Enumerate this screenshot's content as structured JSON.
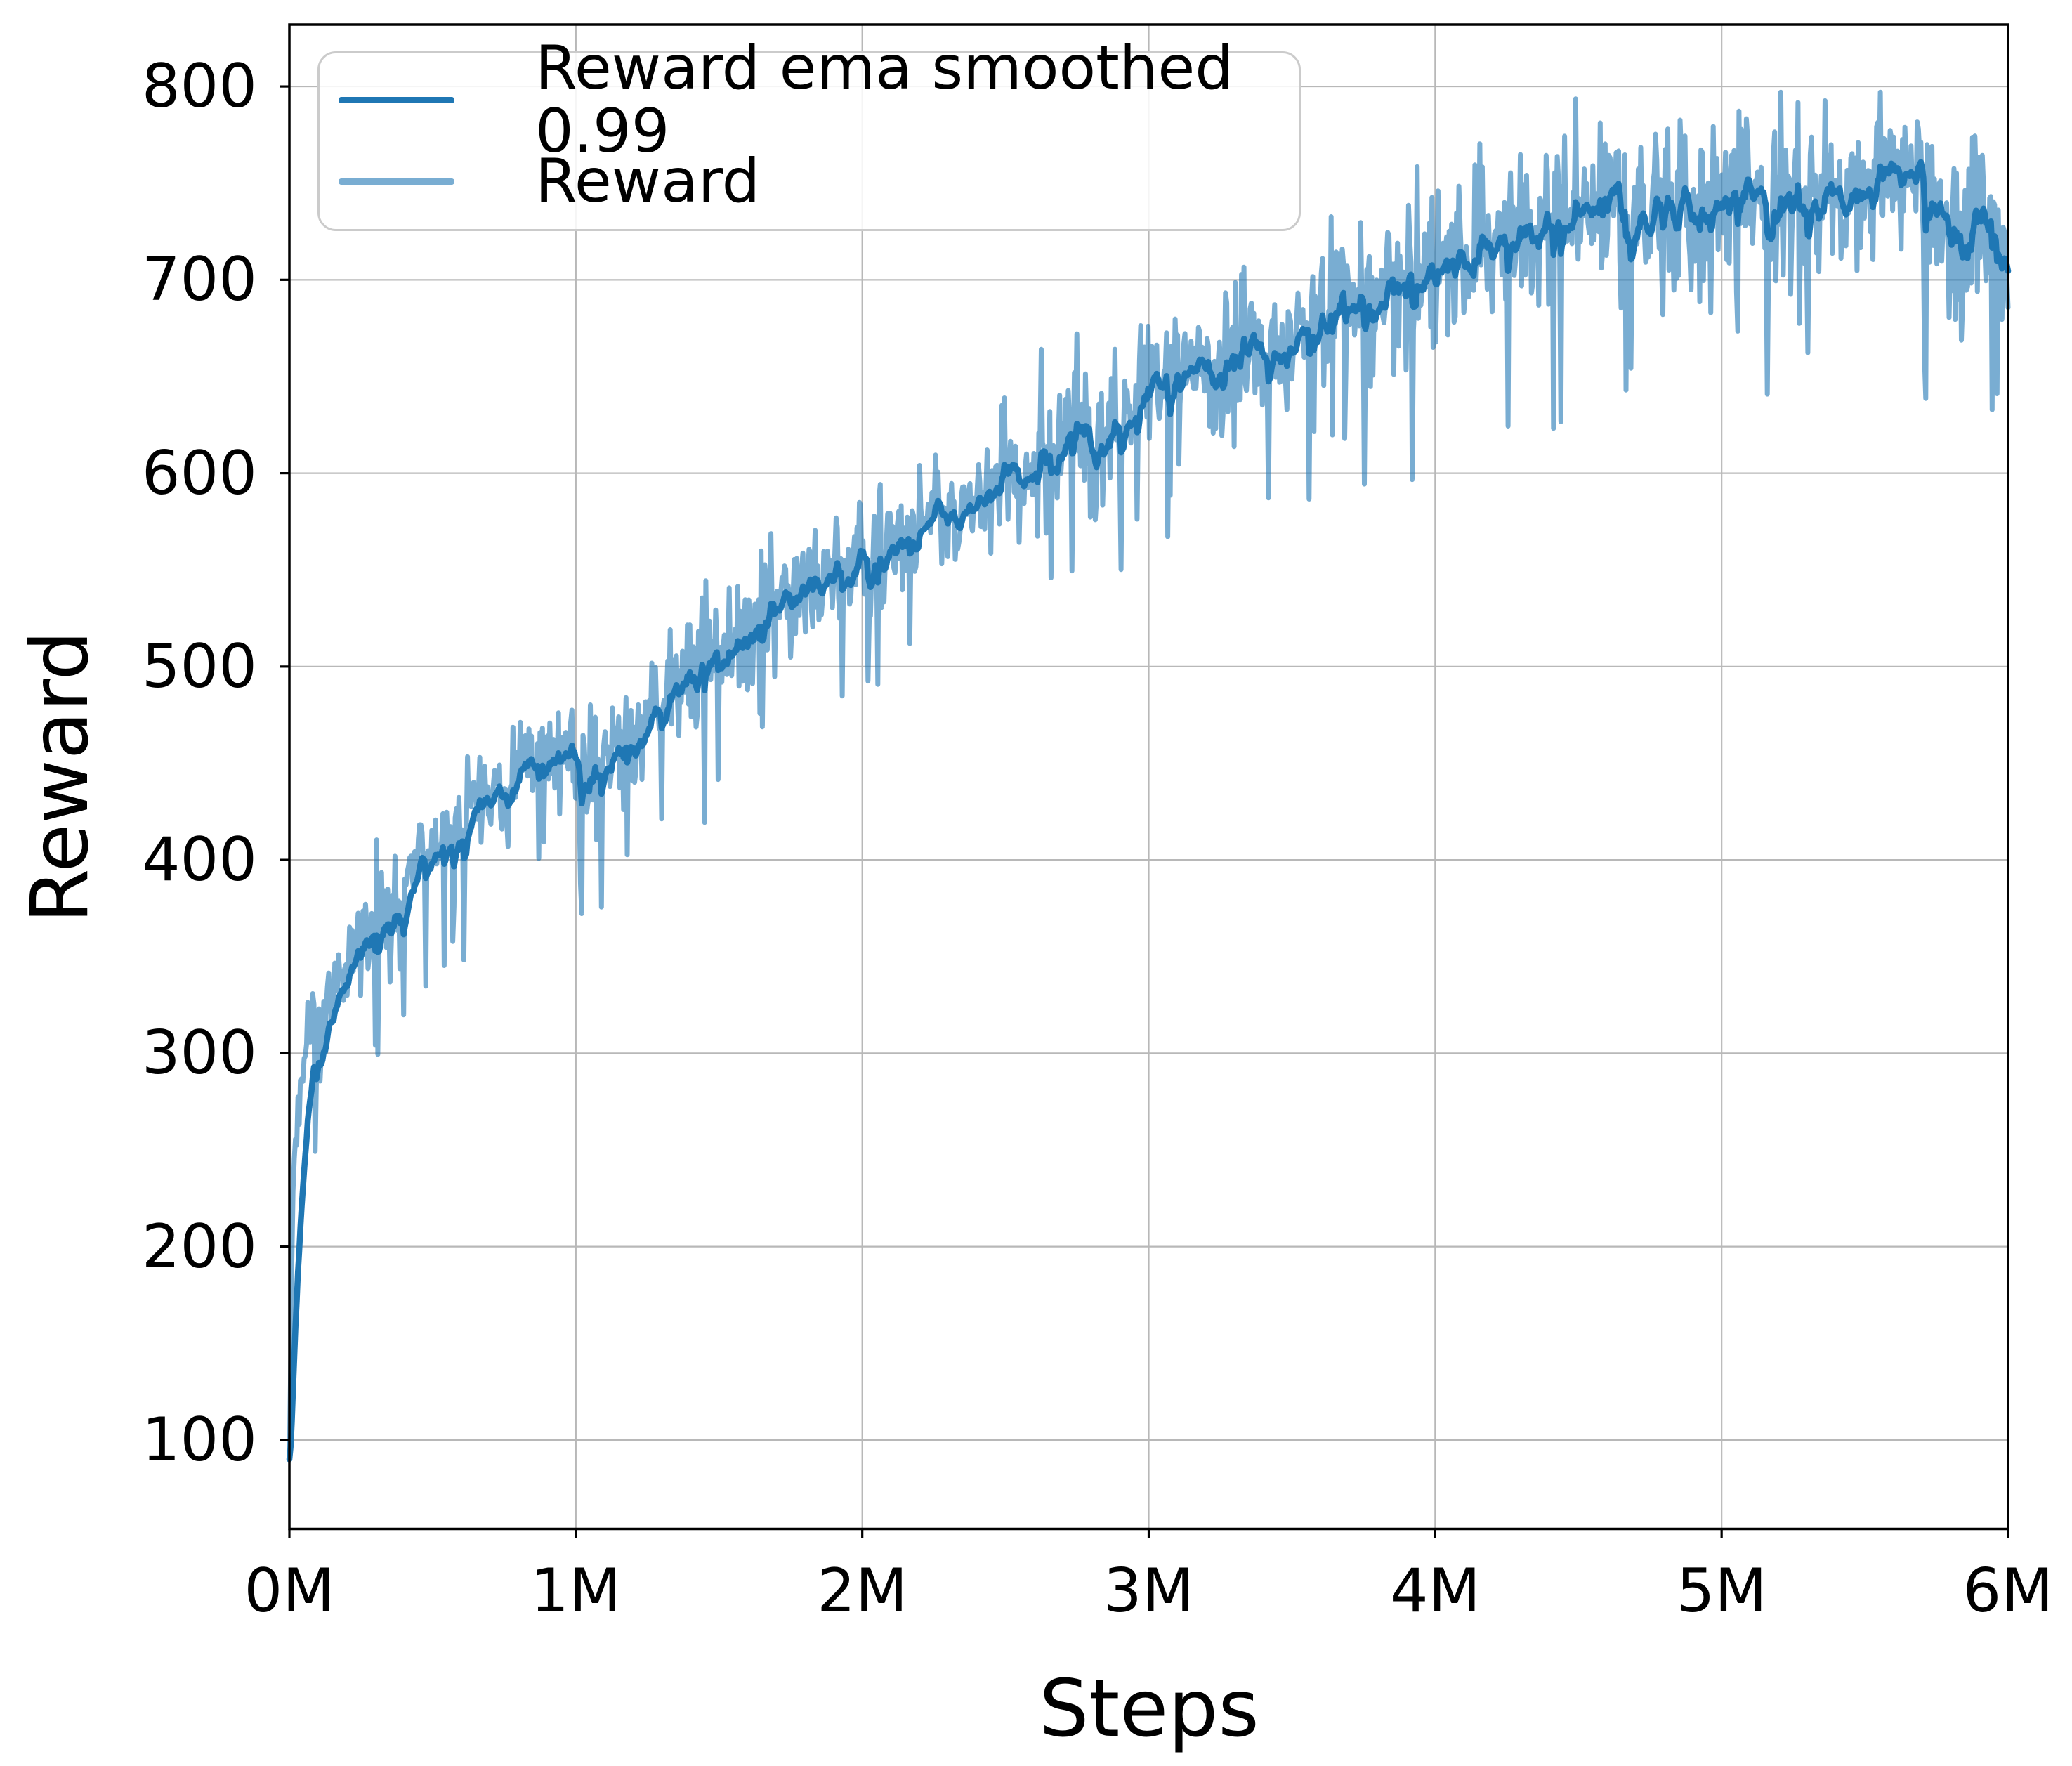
{
  "figure": {
    "background": "#ffffff"
  },
  "chart_data": {
    "type": "line",
    "title": "",
    "xlabel": "Steps",
    "ylabel": "Reward",
    "xlim_steps": [
      0,
      6000000
    ],
    "ylim": [
      54,
      832
    ],
    "grid": {
      "show": true,
      "color": "#b8b8b8"
    },
    "axis_color": "#000000",
    "xticks": {
      "values_millions": [
        0,
        1,
        2,
        3,
        4,
        5,
        6
      ],
      "labels": [
        "0M",
        "1M",
        "2M",
        "3M",
        "4M",
        "5M",
        "6M"
      ]
    },
    "yticks": {
      "values": [
        100,
        200,
        300,
        400,
        500,
        600,
        700,
        800
      ],
      "labels": [
        "100",
        "200",
        "300",
        "400",
        "500",
        "600",
        "700",
        "800"
      ]
    },
    "legend": {
      "position": "upper-left",
      "entries": [
        {
          "label": "Reward ema smoothed 0.99",
          "color": "#1f77b4"
        },
        {
          "label": "Reward",
          "color": "rgba(31,119,180,0.6)"
        }
      ]
    },
    "series": [
      {
        "name": "Reward ema smoothed 0.99",
        "color": "#1f77b4",
        "line_width": 8.5,
        "smoothing": "ema 0.99",
        "x_millions": [
          0,
          0.01,
          0.02,
          0.04,
          0.07,
          0.1,
          0.15,
          0.2,
          0.25,
          0.3,
          0.35,
          0.4,
          0.45,
          0.5,
          0.55,
          0.6,
          0.65,
          0.7,
          0.75,
          0.8,
          0.85,
          0.9,
          0.95,
          1.0,
          1.05,
          1.1,
          1.15,
          1.2,
          1.25,
          1.3,
          1.35,
          1.4,
          1.45,
          1.5,
          1.55,
          1.6,
          1.65,
          1.7,
          1.75,
          1.8,
          1.85,
          1.9,
          1.95,
          2.0,
          2.05,
          2.1,
          2.15,
          2.2,
          2.25,
          2.3,
          2.35,
          2.4,
          2.45,
          2.5,
          2.55,
          2.6,
          2.65,
          2.7,
          2.75,
          2.8,
          2.85,
          2.9,
          2.95,
          3.0,
          3.05,
          3.1,
          3.15,
          3.2,
          3.25,
          3.3,
          3.35,
          3.4,
          3.45,
          3.5,
          3.55,
          3.6,
          3.65,
          3.7,
          3.75,
          3.8,
          3.85,
          3.9,
          3.95,
          4.0,
          4.05,
          4.1,
          4.15,
          4.2,
          4.25,
          4.3,
          4.35,
          4.4,
          4.45,
          4.5,
          4.55,
          4.6,
          4.65,
          4.7,
          4.75,
          4.8,
          4.85,
          4.9,
          4.95,
          5.0,
          5.05,
          5.1,
          5.15,
          5.2,
          5.25,
          5.3,
          5.35,
          5.4,
          5.45,
          5.5,
          5.55,
          5.6,
          5.65,
          5.7,
          5.75,
          5.8,
          5.85,
          5.9,
          5.95,
          6.0
        ],
        "y": [
          90,
          205,
          258,
          292,
          308,
          317,
          331,
          344,
          356,
          368,
          380,
          391,
          400,
          407,
          414,
          421,
          428,
          433,
          438,
          443,
          447,
          451,
          453,
          452,
          448,
          452,
          458,
          464,
          471,
          479,
          486,
          493,
          501,
          508,
          514,
          520,
          526,
          531,
          537,
          541,
          545,
          548,
          552,
          557,
          562,
          566,
          570,
          573,
          575,
          571,
          580,
          589,
          597,
          601,
          597,
          608,
          616,
          621,
          625,
          612,
          628,
          638,
          644,
          648,
          652,
          654,
          655,
          656,
          658,
          660,
          663,
          667,
          670,
          673,
          677,
          681,
          685,
          688,
          691,
          694,
          696,
          699,
          701,
          703,
          706,
          709,
          712,
          715,
          719,
          723,
          727,
          731,
          734,
          736,
          738,
          740,
          741,
          742,
          743,
          741,
          738,
          737,
          739,
          740,
          737,
          736,
          739,
          742,
          741,
          739,
          741,
          743,
          745,
          748,
          752,
          755,
          747,
          740,
          736,
          732,
          729,
          725,
          719,
          713
        ]
      },
      {
        "name": "Reward",
        "color": "rgba(31,119,180,0.6)",
        "line_width": 7,
        "relation": "raw episode reward; noisy band around the smoothed curve",
        "points": 1400,
        "seed": 20240613,
        "observed_min": 89,
        "observed_max": 797,
        "start_value": 90,
        "noise": {
          "sigma_base": 10,
          "sigma_slope": 2.2,
          "down_prob": 0.055,
          "down_base": 22,
          "down_scale": 48,
          "down_slope": 9,
          "up_prob": 0.05,
          "up_base": 12,
          "up_scale": 30,
          "up_slope": 5,
          "max_above": 58,
          "max_below": 118,
          "floor": 86,
          "ceil": 797
        },
        "render_ema_alpha": 0.86
      }
    ]
  }
}
